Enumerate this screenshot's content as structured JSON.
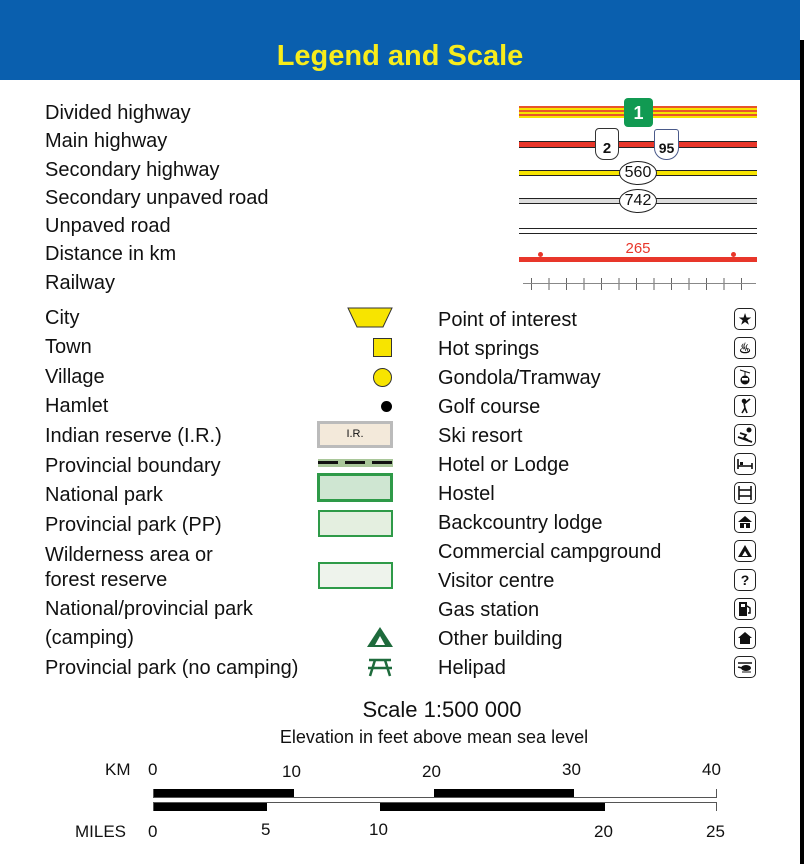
{
  "title": "Legend and Scale",
  "roads": [
    {
      "label": "Divided highway",
      "shield": "1"
    },
    {
      "label": "Main highway",
      "shields": [
        "2",
        "95"
      ]
    },
    {
      "label": "Secondary highway",
      "shield": "560"
    },
    {
      "label": "Secondary unpaved road",
      "shield": "742"
    },
    {
      "label": "Unpaved road"
    },
    {
      "label": "Distance in km",
      "value": "265"
    },
    {
      "label": "Railway"
    }
  ],
  "left_items": [
    "City",
    "Town",
    "Village",
    "Hamlet",
    "Indian reserve (I.R.)",
    "Provincial boundary",
    "National park",
    "Provincial park (PP)",
    "Wilderness area or",
    "forest reserve",
    "National/provincial park",
    "(camping)",
    "Provincial park (no camping)"
  ],
  "ir_label": "I.R.",
  "right_items": [
    {
      "label": "Point of interest",
      "icon": "star-icon"
    },
    {
      "label": "Hot springs",
      "icon": "hot-springs-icon"
    },
    {
      "label": "Gondola/Tramway",
      "icon": "gondola-icon"
    },
    {
      "label": "Golf course",
      "icon": "golfer-icon"
    },
    {
      "label": "Ski resort",
      "icon": "skier-icon"
    },
    {
      "label": "Hotel or Lodge",
      "icon": "bed-icon"
    },
    {
      "label": "Hostel",
      "icon": "bunk-bed-icon"
    },
    {
      "label": "Backcountry lodge",
      "icon": "cabin-icon"
    },
    {
      "label": "Commercial campground",
      "icon": "tent-icon"
    },
    {
      "label": "Visitor centre",
      "icon": "question-icon"
    },
    {
      "label": "Gas station",
      "icon": "gas-pump-icon"
    },
    {
      "label": "Other building",
      "icon": "house-icon"
    },
    {
      "label": "Helipad",
      "icon": "helicopter-icon"
    }
  ],
  "scale": {
    "title": "Scale 1:500 000",
    "subtitle": "Elevation in feet above mean sea level",
    "km_label": "KM",
    "km_ticks": [
      "0",
      "10",
      "20",
      "30",
      "40"
    ],
    "miles_label": "MILES",
    "miles_ticks": [
      "0",
      "5",
      "10",
      "20",
      "25"
    ]
  },
  "colors": {
    "header": "#0a5fae",
    "title": "#f7ec1c",
    "park_green": "#2e9a48",
    "yellow": "#f7e400",
    "red": "#e8362a"
  }
}
